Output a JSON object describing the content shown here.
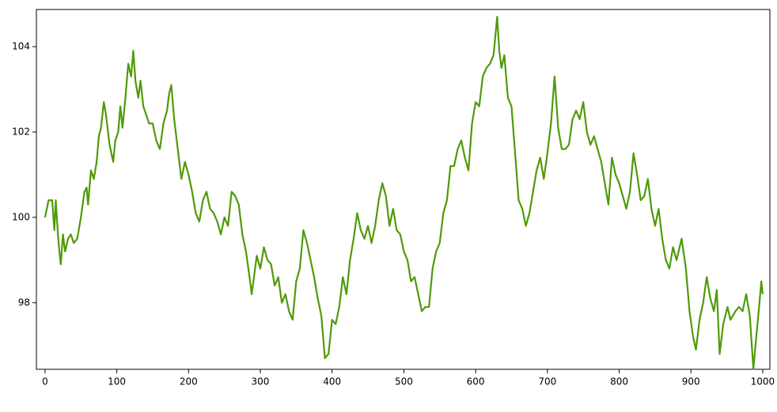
{
  "chart_data": {
    "type": "line",
    "x": [
      0,
      5,
      10,
      13,
      15,
      18,
      20,
      22,
      25,
      28,
      32,
      36,
      40,
      45,
      50,
      55,
      58,
      60,
      64,
      68,
      72,
      75,
      78,
      82,
      85,
      90,
      95,
      98,
      102,
      105,
      108,
      112,
      116,
      120,
      123,
      126,
      130,
      133,
      137,
      141,
      145,
      150,
      155,
      160,
      165,
      170,
      173,
      176,
      180,
      185,
      190,
      195,
      200,
      205,
      210,
      215,
      220,
      225,
      230,
      235,
      240,
      245,
      250,
      255,
      260,
      265,
      270,
      275,
      280,
      285,
      288,
      292,
      295,
      300,
      305,
      310,
      315,
      320,
      325,
      330,
      335,
      340,
      345,
      350,
      355,
      360,
      365,
      370,
      375,
      380,
      385,
      390,
      395,
      400,
      405,
      410,
      415,
      420,
      425,
      430,
      435,
      440,
      445,
      450,
      455,
      460,
      465,
      470,
      475,
      480,
      485,
      490,
      495,
      500,
      505,
      510,
      515,
      520,
      525,
      530,
      535,
      540,
      545,
      550,
      555,
      560,
      565,
      570,
      575,
      580,
      585,
      590,
      595,
      600,
      605,
      610,
      615,
      620,
      625,
      630,
      633,
      636,
      640,
      645,
      650,
      655,
      660,
      665,
      670,
      675,
      680,
      685,
      690,
      695,
      700,
      705,
      710,
      715,
      720,
      725,
      730,
      735,
      740,
      745,
      750,
      755,
      760,
      765,
      770,
      775,
      780,
      785,
      790,
      795,
      800,
      805,
      810,
      815,
      820,
      825,
      830,
      835,
      840,
      845,
      850,
      855,
      860,
      865,
      870,
      875,
      880,
      887,
      893,
      898,
      903,
      907,
      912,
      917,
      922,
      927,
      932,
      936,
      940,
      945,
      951,
      955,
      962,
      967,
      972,
      977,
      982,
      987,
      991,
      995,
      998,
      1000
    ],
    "series": [
      {
        "color": "#4f9a08",
        "values": [
          100.0,
          100.4,
          100.4,
          99.7,
          100.4,
          99.6,
          99.2,
          98.9,
          99.6,
          99.2,
          99.5,
          99.6,
          99.4,
          99.5,
          100.0,
          100.6,
          100.7,
          100.3,
          101.1,
          100.9,
          101.3,
          101.9,
          102.1,
          102.7,
          102.4,
          101.7,
          101.3,
          101.8,
          102.0,
          102.6,
          102.1,
          102.8,
          103.6,
          103.3,
          103.9,
          103.2,
          102.8,
          103.2,
          102.6,
          102.4,
          102.2,
          102.2,
          101.8,
          101.6,
          102.2,
          102.5,
          102.9,
          103.1,
          102.3,
          101.6,
          100.9,
          101.3,
          101.0,
          100.6,
          100.1,
          99.9,
          100.4,
          100.6,
          100.2,
          100.1,
          99.9,
          99.6,
          100.0,
          99.8,
          100.6,
          100.5,
          100.3,
          99.6,
          99.2,
          98.6,
          98.2,
          98.7,
          99.1,
          98.8,
          99.3,
          99.0,
          98.9,
          98.4,
          98.6,
          98.0,
          98.2,
          97.8,
          97.6,
          98.5,
          98.8,
          99.7,
          99.4,
          99.0,
          98.6,
          98.1,
          97.7,
          96.7,
          96.8,
          97.6,
          97.5,
          97.9,
          98.6,
          98.2,
          99.0,
          99.5,
          100.1,
          99.7,
          99.5,
          99.8,
          99.4,
          99.8,
          100.4,
          100.8,
          100.5,
          99.8,
          100.2,
          99.7,
          99.6,
          99.2,
          99.0,
          98.5,
          98.6,
          98.2,
          97.8,
          97.9,
          97.9,
          98.8,
          99.2,
          99.4,
          100.1,
          100.4,
          101.2,
          101.2,
          101.6,
          101.8,
          101.4,
          101.1,
          102.2,
          102.7,
          102.6,
          103.3,
          103.5,
          103.6,
          103.8,
          104.7,
          103.9,
          103.5,
          103.8,
          102.8,
          102.6,
          101.5,
          100.4,
          100.2,
          99.8,
          100.1,
          100.6,
          101.1,
          101.4,
          100.9,
          101.5,
          102.2,
          103.3,
          102.1,
          101.6,
          101.6,
          101.7,
          102.3,
          102.5,
          102.3,
          102.7,
          102.0,
          101.7,
          101.9,
          101.6,
          101.3,
          100.8,
          100.3,
          101.4,
          101.0,
          100.8,
          100.5,
          100.2,
          100.6,
          101.5,
          101.0,
          100.4,
          100.5,
          100.9,
          100.2,
          99.8,
          100.2,
          99.5,
          99.0,
          98.8,
          99.3,
          99.0,
          99.5,
          98.8,
          97.8,
          97.2,
          96.9,
          97.6,
          98.0,
          98.6,
          98.1,
          97.8,
          98.3,
          96.8,
          97.5,
          97.9,
          97.6,
          97.8,
          97.9,
          97.8,
          98.2,
          97.7,
          96.45,
          97.2,
          97.9,
          98.5,
          98.2
        ]
      }
    ],
    "xlim": [
      -12,
      1010
    ],
    "ylim": [
      96.44,
      104.87
    ],
    "xticks": [
      0,
      100,
      200,
      300,
      400,
      500,
      600,
      700,
      800,
      900,
      1000
    ],
    "yticks": [
      98,
      100,
      102,
      104
    ]
  }
}
